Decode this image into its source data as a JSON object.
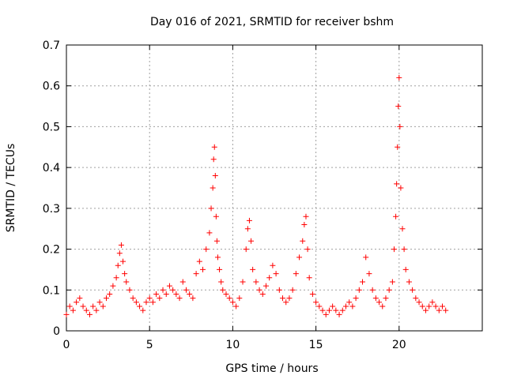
{
  "chart_data": {
    "type": "scatter",
    "title": "Day 016 of 2021, SRMTID for receiver bshm",
    "xlabel": "GPS time / hours",
    "ylabel": "SRMTID / TECUs",
    "xlim": [
      0,
      25
    ],
    "ylim": [
      0,
      0.7
    ],
    "x_ticks": [
      0,
      5,
      10,
      15,
      20
    ],
    "x_tick_labels": [
      "0",
      "5",
      "10",
      "15",
      "20"
    ],
    "y_ticks": [
      0,
      0.1,
      0.2,
      0.3,
      0.4,
      0.5,
      0.6,
      0.7
    ],
    "y_tick_labels": [
      "0",
      "0.1",
      "0.2",
      "0.3",
      "0.4",
      "0.5",
      "0.6",
      "0.7"
    ],
    "grid": true,
    "marker": "plus",
    "color": "#ff0000",
    "series": [
      {
        "name": "SRMTID",
        "x": [
          0.0,
          0.2,
          0.4,
          0.6,
          0.8,
          1.0,
          1.2,
          1.4,
          1.6,
          1.8,
          2.0,
          2.2,
          2.4,
          2.6,
          2.8,
          3.0,
          3.1,
          3.2,
          3.3,
          3.4,
          3.5,
          3.6,
          3.8,
          4.0,
          4.2,
          4.4,
          4.6,
          4.8,
          5.0,
          5.2,
          5.4,
          5.6,
          5.8,
          6.0,
          6.2,
          6.4,
          6.6,
          6.8,
          7.0,
          7.2,
          7.4,
          7.6,
          7.8,
          8.0,
          8.2,
          8.4,
          8.6,
          8.7,
          8.8,
          8.85,
          8.9,
          8.95,
          9.0,
          9.05,
          9.1,
          9.2,
          9.3,
          9.4,
          9.6,
          9.8,
          10.0,
          10.2,
          10.4,
          10.6,
          10.8,
          10.9,
          11.0,
          11.1,
          11.2,
          11.4,
          11.6,
          11.8,
          12.0,
          12.2,
          12.4,
          12.6,
          12.8,
          13.0,
          13.2,
          13.4,
          13.6,
          13.8,
          14.0,
          14.2,
          14.3,
          14.4,
          14.5,
          14.6,
          14.8,
          15.0,
          15.2,
          15.4,
          15.6,
          15.8,
          16.0,
          16.2,
          16.4,
          16.6,
          16.8,
          17.0,
          17.2,
          17.4,
          17.6,
          17.8,
          18.0,
          18.2,
          18.4,
          18.6,
          18.8,
          19.0,
          19.2,
          19.4,
          19.6,
          19.7,
          19.8,
          19.85,
          19.9,
          19.95,
          20.0,
          20.05,
          20.1,
          20.2,
          20.3,
          20.4,
          20.6,
          20.8,
          21.0,
          21.2,
          21.4,
          21.6,
          21.8,
          22.0,
          22.2,
          22.4,
          22.6,
          22.8
        ],
        "y": [
          0.04,
          0.06,
          0.05,
          0.07,
          0.08,
          0.06,
          0.05,
          0.04,
          0.06,
          0.05,
          0.07,
          0.06,
          0.08,
          0.09,
          0.11,
          0.13,
          0.16,
          0.19,
          0.21,
          0.17,
          0.14,
          0.12,
          0.1,
          0.08,
          0.07,
          0.06,
          0.05,
          0.07,
          0.08,
          0.07,
          0.09,
          0.08,
          0.1,
          0.09,
          0.11,
          0.1,
          0.09,
          0.08,
          0.12,
          0.1,
          0.09,
          0.08,
          0.14,
          0.17,
          0.15,
          0.2,
          0.24,
          0.3,
          0.35,
          0.42,
          0.45,
          0.38,
          0.28,
          0.22,
          0.18,
          0.15,
          0.12,
          0.1,
          0.09,
          0.08,
          0.07,
          0.06,
          0.08,
          0.12,
          0.2,
          0.25,
          0.27,
          0.22,
          0.15,
          0.12,
          0.1,
          0.09,
          0.11,
          0.13,
          0.16,
          0.14,
          0.1,
          0.08,
          0.07,
          0.08,
          0.1,
          0.14,
          0.18,
          0.22,
          0.26,
          0.28,
          0.2,
          0.13,
          0.09,
          0.07,
          0.06,
          0.05,
          0.04,
          0.05,
          0.06,
          0.05,
          0.04,
          0.05,
          0.06,
          0.07,
          0.06,
          0.08,
          0.1,
          0.12,
          0.18,
          0.14,
          0.1,
          0.08,
          0.07,
          0.06,
          0.08,
          0.1,
          0.12,
          0.2,
          0.28,
          0.36,
          0.45,
          0.55,
          0.62,
          0.5,
          0.35,
          0.25,
          0.2,
          0.15,
          0.12,
          0.1,
          0.08,
          0.07,
          0.06,
          0.05,
          0.06,
          0.07,
          0.06,
          0.05,
          0.06,
          0.05
        ]
      }
    ]
  }
}
